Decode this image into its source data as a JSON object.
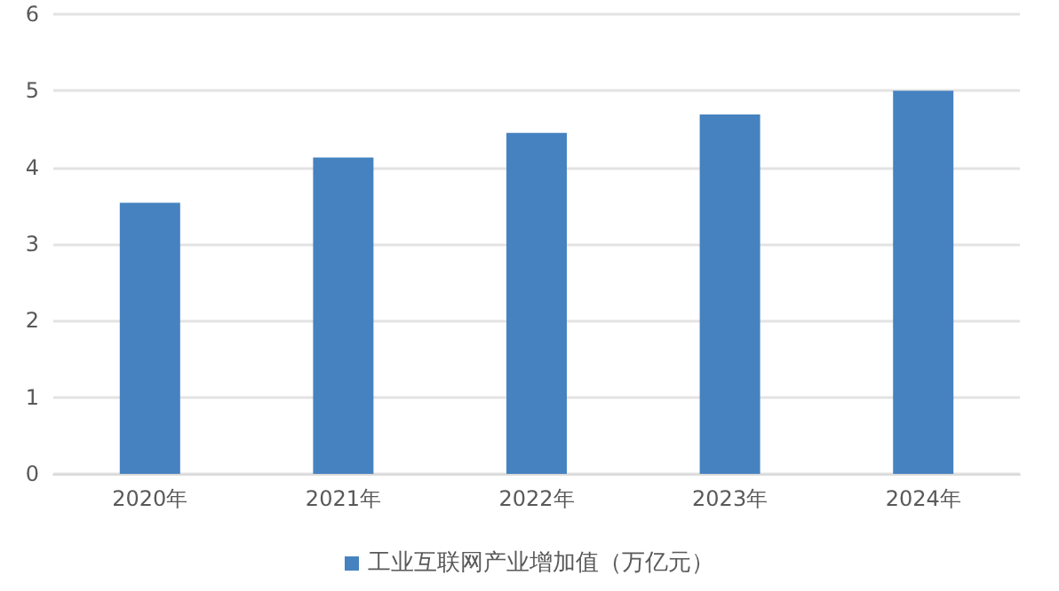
{
  "chart_data": {
    "type": "bar",
    "categories": [
      "2020年",
      "2021年",
      "2022年",
      "2023年",
      "2024年"
    ],
    "series": [
      {
        "name": "工业互联网产业增加值（万亿元）",
        "color": "#4682c0",
        "values": [
          3.54,
          4.13,
          4.45,
          4.69,
          5.0
        ]
      }
    ],
    "ylim": [
      0,
      6
    ],
    "yticks": [
      0,
      1,
      2,
      3,
      4,
      5,
      6
    ],
    "grid": "y",
    "legend": "bottom"
  }
}
